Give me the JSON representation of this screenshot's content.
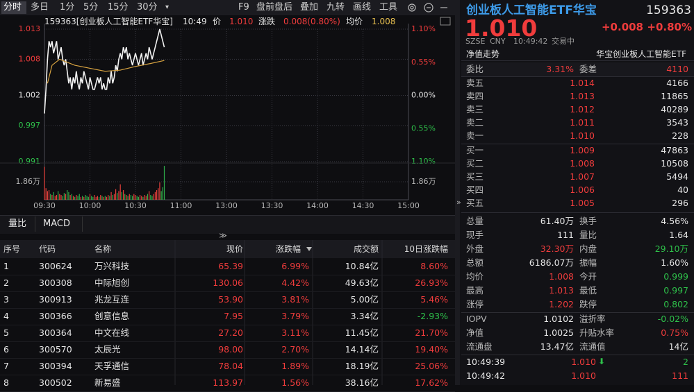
{
  "toolbar": {
    "tabs": [
      "分时",
      "多日",
      "1分",
      "5分",
      "15分",
      "30分"
    ],
    "tools": [
      "F9",
      "盘前盘后",
      "叠加",
      "九转",
      "画线",
      "工具"
    ]
  },
  "chart_data": {
    "type": "line",
    "title": "159363[创业板人工智能ETF华宝]",
    "time": "10:49",
    "price_label": "价",
    "price": "1.010",
    "change_label": "涨跌",
    "change": "0.008(0.80%)",
    "avg_label": "均价",
    "avg": "1.008",
    "xlim": [
      0,
      240
    ],
    "xticks": [
      {
        "value": 0,
        "label": "09:30"
      },
      {
        "value": 30,
        "label": "10:00"
      },
      {
        "value": 60,
        "label": "10:30"
      },
      {
        "value": 90,
        "label": "11:00"
      },
      {
        "value": 120,
        "label": "13:00"
      },
      {
        "value": 150,
        "label": "13:30"
      },
      {
        "value": 180,
        "label": "14:00"
      },
      {
        "value": 210,
        "label": "14:30"
      },
      {
        "value": 240,
        "label": "15:00"
      }
    ],
    "ylim": [
      0.991,
      1.013
    ],
    "yticks": [
      1.013,
      1.008,
      1.002,
      0.997,
      0.991
    ],
    "y2lim": [
      -1.1,
      1.1
    ],
    "y2ticks": [
      {
        "value": 1.1,
        "label": "1.10%"
      },
      {
        "value": 0.55,
        "label": "0.55%"
      },
      {
        "value": 0,
        "label": "0.00%"
      },
      {
        "value": -0.55,
        "label": "0.55%"
      },
      {
        "value": -1.1,
        "label": "1.10%"
      }
    ],
    "grid": true,
    "series": [
      {
        "color": "#f2f2f2",
        "values": [
          0.999,
          1.003,
          1.008,
          1.011,
          1.01,
          1.011,
          1.009,
          1.01,
          1.011,
          1.008,
          1.009,
          1.01,
          1.008,
          1.007,
          1.008,
          1.006,
          1.004,
          1.005,
          1.003,
          1.005,
          1.004,
          1.006,
          1.004,
          1.003,
          1.005,
          1.004,
          1.006,
          1.005,
          1.004,
          1.003,
          1.005,
          1.004,
          1.003,
          1.003,
          1.004,
          1.005,
          1.004,
          1.005,
          1.003,
          1.004,
          1.003,
          1.003,
          1.005,
          1.004,
          1.006,
          1.004,
          1.005,
          1.007,
          1.006,
          1.008,
          1.009,
          1.008,
          1.01,
          1.009,
          1.01,
          1.008,
          1.009,
          1.008,
          1.007,
          1.008,
          1.009,
          1.008,
          1.007,
          1.008,
          1.009,
          1.007,
          1.008,
          1.009,
          1.008,
          1.01,
          1.009,
          1.008,
          1.009,
          1.01,
          1.011,
          1.012,
          1.013,
          1.012,
          1.011,
          1.01
        ]
      },
      {
        "color": "#d9a441",
        "x": [
          2,
          5,
          10,
          20,
          30,
          40,
          50,
          60,
          70,
          79
        ],
        "values": [
          1.004,
          1.007,
          1.008,
          1.007,
          1.0065,
          1.006,
          1.0062,
          1.0068,
          1.0073,
          1.0078
        ]
      }
    ],
    "volume": {
      "up_color": "#e8413c",
      "down_color": "#2fb04a",
      "ylim": [
        0,
        3.72
      ],
      "yticks": [
        {
          "value": 1.86,
          "label": "1.86万"
        }
      ],
      "values": [
        3.4,
        1.2,
        0.9,
        1.0,
        0.6,
        0.5,
        0.8,
        0.4,
        0.5,
        0.9,
        0.6,
        0.5,
        0.4,
        0.7,
        0.6,
        1.0,
        0.8,
        0.5,
        0.6,
        0.4,
        0.3,
        0.5,
        0.4,
        0.6,
        0.3,
        0.4,
        0.3,
        0.5,
        0.4,
        0.3,
        0.6,
        0.4,
        0.3,
        0.5,
        0.3,
        0.4,
        0.3,
        0.5,
        0.4,
        0.3,
        0.4,
        0.3,
        0.5,
        0.4,
        0.8,
        0.5,
        0.6,
        1.1,
        0.7,
        0.9,
        1.6,
        0.8,
        1.0,
        0.6,
        0.5,
        0.4,
        0.6,
        0.5,
        0.4,
        0.6,
        0.5,
        0.4,
        0.3,
        0.5,
        0.4,
        0.3,
        0.5,
        0.4,
        0.6,
        0.9,
        0.5,
        0.4,
        0.6,
        0.8,
        1.0,
        1.2,
        1.8,
        0.9,
        1.3,
        3.5
      ]
    }
  },
  "sub_tabs": [
    "量比",
    "MACD"
  ],
  "table": {
    "columns": [
      "序号",
      "代码",
      "名称",
      "现价",
      "涨跌幅",
      "成交额",
      "10日涨跌幅"
    ],
    "rows": [
      [
        "1",
        "300624",
        "万兴科技",
        "65.39",
        "6.99%",
        "10.84亿",
        "8.60%"
      ],
      [
        "2",
        "300308",
        "中际旭创",
        "130.06",
        "4.42%",
        "49.63亿",
        "26.93%"
      ],
      [
        "3",
        "300913",
        "兆龙互连",
        "53.90",
        "3.81%",
        "5.00亿",
        "5.46%"
      ],
      [
        "4",
        "300366",
        "创意信息",
        "7.95",
        "3.79%",
        "3.34亿",
        "-2.93%"
      ],
      [
        "5",
        "300364",
        "中文在线",
        "27.20",
        "3.11%",
        "11.45亿",
        "21.70%"
      ],
      [
        "6",
        "300570",
        "太辰光",
        "98.00",
        "2.70%",
        "14.14亿",
        "19.40%"
      ],
      [
        "7",
        "300394",
        "天孚通信",
        "78.04",
        "1.89%",
        "18.19亿",
        "25.06%"
      ],
      [
        "8",
        "300502",
        "新易盛",
        "113.97",
        "1.56%",
        "38.16亿",
        "17.62%"
      ]
    ]
  },
  "quote": {
    "name": "创业板人工智能ETF华宝",
    "code": "159363",
    "price": "1.010",
    "change": "+0.008",
    "change_pct": "+0.80%",
    "exchange": "SZSE",
    "currency": "CNY",
    "time": "10:49:42",
    "status": "交易中",
    "tab": "净值走势",
    "fund_name": "华宝创业板人工智能ETF",
    "ratio": {
      "label": "委比",
      "value": "3.31%",
      "label2": "委差",
      "value2": "4110"
    },
    "asks": [
      {
        "label": "卖五",
        "price": "1.014",
        "volume": "4166"
      },
      {
        "label": "卖四",
        "price": "1.013",
        "volume": "11865"
      },
      {
        "label": "卖三",
        "price": "1.012",
        "volume": "40289"
      },
      {
        "label": "卖二",
        "price": "1.011",
        "volume": "3543"
      },
      {
        "label": "卖一",
        "price": "1.010",
        "volume": "228"
      }
    ],
    "bids": [
      {
        "label": "买一",
        "price": "1.009",
        "volume": "47863"
      },
      {
        "label": "买二",
        "price": "1.008",
        "volume": "10508"
      },
      {
        "label": "买三",
        "price": "1.007",
        "volume": "5494"
      },
      {
        "label": "买四",
        "price": "1.006",
        "volume": "40"
      },
      {
        "label": "买五",
        "price": "1.005",
        "volume": "296"
      }
    ],
    "stats": [
      {
        "label": "总量",
        "value": "61.40万",
        "color": "#e6e6e6",
        "label2": "换手",
        "value2": "4.56%",
        "color2": "#e6e6e6"
      },
      {
        "label": "现手",
        "value": "111",
        "color": "#e6e6e6",
        "label2": "量比",
        "value2": "1.64",
        "color2": "#e6e6e6"
      },
      {
        "label": "外盘",
        "value": "32.30万",
        "color": "#f03c3c",
        "label2": "内盘",
        "value2": "29.10万",
        "color2": "#2ec04a"
      },
      {
        "label": "总额",
        "value": "6186.07万",
        "color": "#e6e6e6",
        "label2": "振幅",
        "value2": "1.60%",
        "color2": "#e6e6e6"
      },
      {
        "label": "均价",
        "value": "1.008",
        "color": "#f03c3c",
        "label2": "今开",
        "value2": "0.999",
        "color2": "#2ec04a"
      },
      {
        "label": "最高",
        "value": "1.013",
        "color": "#f03c3c",
        "label2": "最低",
        "value2": "0.997",
        "color2": "#2ec04a"
      },
      {
        "label": "涨停",
        "value": "1.202",
        "color": "#f03c3c",
        "label2": "跌停",
        "value2": "0.802",
        "color2": "#2ec04a"
      }
    ],
    "nav": [
      {
        "label": "IOPV",
        "value": "1.0102",
        "color": "#e6e6e6",
        "label2": "溢折率",
        "value2": "-0.02%",
        "color2": "#2ec04a"
      },
      {
        "label": "净值",
        "value": "1.0025",
        "color": "#e6e6e6",
        "label2": "升贴水率",
        "value2": "0.75%",
        "color2": "#f03c3c"
      },
      {
        "label": "流通盘",
        "value": "13.47亿",
        "color": "#e6e6e6",
        "label2": "流通值",
        "value2": "14亿",
        "color2": "#e6e6e6"
      }
    ],
    "trades": [
      {
        "time": "10:49:39",
        "price": "1.010",
        "volume": "2"
      },
      {
        "time": "10:49:42",
        "price": "1.010",
        "volume": "111"
      }
    ]
  }
}
